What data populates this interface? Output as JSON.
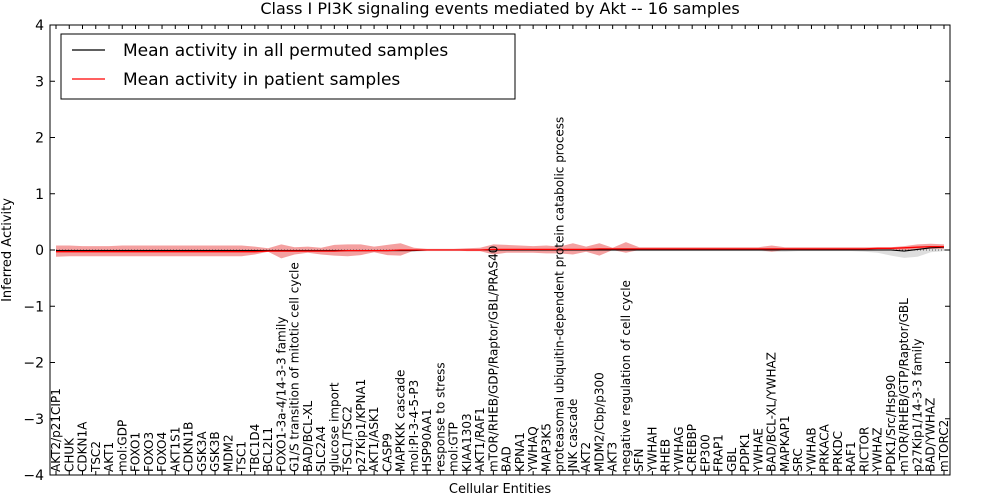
{
  "chart_data": {
    "type": "line",
    "title": "Class I PI3K signaling events mediated by Akt -- 16 samples",
    "xlabel": "Cellular Entities",
    "ylabel": "Inferred Activity",
    "ylim": [
      -4,
      4
    ],
    "yticks": [
      4,
      3,
      2,
      1,
      0,
      -1,
      -2,
      -3,
      -4
    ],
    "ytick_labels": [
      "4",
      "3",
      "2",
      "1",
      "0",
      "−1",
      "−2",
      "−3",
      "−4"
    ],
    "legend": {
      "placement": "top-left",
      "entries": [
        {
          "label": "Mean activity in all permuted samples",
          "color": "#000000"
        },
        {
          "label": "Mean activity in patient samples",
          "color": "#ff0000"
        }
      ]
    },
    "categories": [
      "AKT2/p21CIP1",
      "CHUK",
      "CDKN1A",
      "TSC2",
      "AKT1",
      "mol:GDP",
      "FOXO1",
      "FOXO3",
      "FOXO4",
      "AKT1S1",
      "CDKN1B",
      "GSK3A",
      "GSK3B",
      "MDM2",
      "TSC1",
      "TBC1D4",
      "BCL2L1",
      "FOXO1-3a-4/14-3-3 family",
      "G1/S transition of mitotic cell cycle",
      "BAD/BCL-XL",
      "SLC2A4",
      "glucose import",
      "TSC1/TSC2",
      "p27Kip1/KPNA1",
      "AKT1/ASK1",
      "CASP9",
      "MAPKKK cascade",
      "mol:PI-3-4-5-P3",
      "HSP90AA1",
      "response to stress",
      "mol:GTP",
      "KIAA1303",
      "AKT1/RAF1",
      "mTOR/RHEB/GDP/Raptor/GBL/PRAS40",
      "BAD",
      "KPNA1",
      "YWHAQ",
      "MAP3K5",
      "proteasomal ubiquitin-dependent protein catabolic process",
      "JNK cascade",
      "AKT2",
      "MDM2/Cbp/p300",
      "AKT3",
      "negative regulation of cell cycle",
      "SFN",
      "YWHAH",
      "RHEB",
      "YWHAG",
      "CREBBP",
      "EP300",
      "FRAP1",
      "GBL",
      "PDPK1",
      "YWHAE",
      "BAD/BCL-XL/YWHAZ",
      "MAPKAP1",
      "SRC",
      "YWHAB",
      "PRKACA",
      "PRKDC",
      "RAF1",
      "RICTOR",
      "YWHAZ",
      "PDK1/Src/Hsp90",
      "mTOR/RHEB/GTP/Raptor/GBL",
      "p27Kip1/14-3-3 family",
      "BAD/YWHAZ",
      "mTORC2"
    ],
    "series": [
      {
        "name": "Mean activity in patient samples",
        "color": "#ff0000",
        "values": [
          -0.03,
          -0.03,
          -0.03,
          -0.03,
          -0.03,
          -0.03,
          -0.03,
          -0.03,
          -0.03,
          -0.03,
          -0.03,
          -0.03,
          -0.03,
          -0.03,
          -0.03,
          -0.03,
          -0.02,
          -0.02,
          -0.02,
          -0.02,
          -0.02,
          -0.02,
          -0.01,
          -0.01,
          -0.01,
          -0.01,
          0.0,
          0.0,
          0.0,
          0.0,
          0.0,
          0.0,
          0.0,
          0.01,
          0.01,
          0.01,
          0.01,
          0.01,
          0.01,
          0.01,
          0.01,
          0.02,
          0.02,
          0.02,
          0.02,
          0.02,
          0.02,
          0.02,
          0.02,
          0.02,
          0.02,
          0.02,
          0.02,
          0.02,
          0.02,
          0.02,
          0.02,
          0.02,
          0.02,
          0.02,
          0.02,
          0.02,
          0.03,
          0.03,
          0.04,
          0.05,
          0.06,
          0.06
        ],
        "band_upper": [
          0.08,
          0.08,
          0.07,
          0.07,
          0.07,
          0.08,
          0.08,
          0.08,
          0.08,
          0.08,
          0.08,
          0.08,
          0.08,
          0.08,
          0.08,
          0.06,
          0.03,
          0.1,
          0.05,
          0.06,
          0.04,
          0.09,
          0.1,
          0.1,
          0.06,
          0.09,
          0.12,
          0.04,
          0.02,
          0.02,
          0.02,
          0.03,
          0.04,
          0.1,
          0.09,
          0.08,
          0.07,
          0.08,
          0.06,
          0.12,
          0.06,
          0.12,
          0.04,
          0.14,
          0.05,
          0.05,
          0.05,
          0.05,
          0.05,
          0.05,
          0.05,
          0.05,
          0.05,
          0.05,
          0.08,
          0.05,
          0.05,
          0.05,
          0.05,
          0.05,
          0.05,
          0.05,
          0.05,
          0.05,
          0.07,
          0.1,
          0.11,
          0.1
        ],
        "band_lower": [
          -0.12,
          -0.11,
          -0.11,
          -0.11,
          -0.11,
          -0.11,
          -0.11,
          -0.11,
          -0.11,
          -0.11,
          -0.11,
          -0.11,
          -0.11,
          -0.11,
          -0.11,
          -0.08,
          -0.03,
          -0.15,
          -0.08,
          -0.05,
          -0.08,
          -0.1,
          -0.11,
          -0.09,
          -0.04,
          -0.09,
          -0.1,
          -0.01,
          0.0,
          0.0,
          0.0,
          -0.02,
          -0.02,
          -0.08,
          -0.05,
          -0.05,
          -0.05,
          -0.06,
          -0.06,
          -0.08,
          -0.03,
          -0.1,
          0.0,
          -0.05,
          0.0,
          0.0,
          0.0,
          0.0,
          0.0,
          0.0,
          0.0,
          0.0,
          0.0,
          0.0,
          -0.03,
          0.0,
          0.0,
          0.0,
          0.0,
          0.0,
          0.0,
          0.0,
          0.0,
          0.0,
          0.0,
          0.0,
          0.02,
          0.02
        ]
      },
      {
        "name": "Mean activity in all permuted samples",
        "color": "#000000",
        "values": [
          -0.01,
          -0.01,
          -0.01,
          -0.01,
          -0.01,
          -0.01,
          -0.01,
          -0.01,
          -0.01,
          -0.01,
          -0.01,
          -0.01,
          -0.01,
          -0.01,
          -0.01,
          -0.01,
          -0.01,
          -0.01,
          -0.01,
          -0.01,
          -0.01,
          -0.01,
          -0.01,
          -0.01,
          -0.01,
          -0.01,
          -0.01,
          -0.01,
          0.0,
          0.0,
          0.0,
          0.0,
          0.0,
          0.0,
          0.0,
          0.0,
          0.0,
          0.0,
          0.0,
          0.0,
          0.0,
          0.0,
          0.0,
          0.0,
          0.0,
          0.0,
          0.0,
          0.0,
          0.0,
          0.0,
          0.0,
          0.0,
          0.0,
          0.0,
          0.0,
          0.0,
          0.0,
          0.0,
          0.0,
          0.0,
          0.0,
          0.0,
          0.0,
          0.0,
          -0.02,
          0.01,
          0.04,
          0.05
        ],
        "band_upper": [
          0.02,
          0.02,
          0.02,
          0.02,
          0.02,
          0.02,
          0.02,
          0.02,
          0.02,
          0.02,
          0.02,
          0.02,
          0.02,
          0.02,
          0.02,
          0.02,
          0.02,
          0.02,
          0.02,
          0.02,
          0.02,
          0.02,
          0.02,
          0.02,
          0.02,
          0.02,
          0.02,
          0.02,
          0.02,
          0.02,
          0.02,
          0.02,
          0.02,
          0.02,
          0.02,
          0.02,
          0.02,
          0.02,
          0.02,
          0.02,
          0.02,
          0.02,
          0.02,
          0.02,
          0.02,
          0.02,
          0.02,
          0.02,
          0.02,
          0.02,
          0.02,
          0.02,
          0.02,
          0.02,
          0.02,
          0.02,
          0.02,
          0.02,
          0.02,
          0.02,
          0.02,
          0.02,
          0.02,
          0.02,
          0.03,
          0.05,
          0.07,
          0.07
        ],
        "band_lower": [
          -0.03,
          -0.03,
          -0.03,
          -0.03,
          -0.03,
          -0.03,
          -0.03,
          -0.03,
          -0.03,
          -0.03,
          -0.03,
          -0.03,
          -0.03,
          -0.03,
          -0.03,
          -0.03,
          -0.03,
          -0.03,
          -0.03,
          -0.03,
          -0.03,
          -0.03,
          -0.03,
          -0.03,
          -0.03,
          -0.03,
          -0.03,
          -0.03,
          -0.02,
          -0.02,
          -0.02,
          -0.02,
          -0.02,
          -0.02,
          -0.02,
          -0.02,
          -0.02,
          -0.02,
          -0.02,
          -0.02,
          -0.02,
          -0.02,
          -0.02,
          -0.02,
          -0.02,
          -0.02,
          -0.02,
          -0.02,
          -0.02,
          -0.02,
          -0.02,
          -0.02,
          -0.02,
          -0.02,
          -0.03,
          -0.03,
          -0.02,
          -0.02,
          -0.02,
          -0.02,
          -0.02,
          -0.03,
          -0.05,
          -0.1,
          -0.14,
          -0.12,
          -0.04,
          -0.02
        ]
      }
    ],
    "colors": {
      "patient_band": "#f08080",
      "permuted_band": "#c8c8c8",
      "zero_line": "#555555"
    }
  }
}
